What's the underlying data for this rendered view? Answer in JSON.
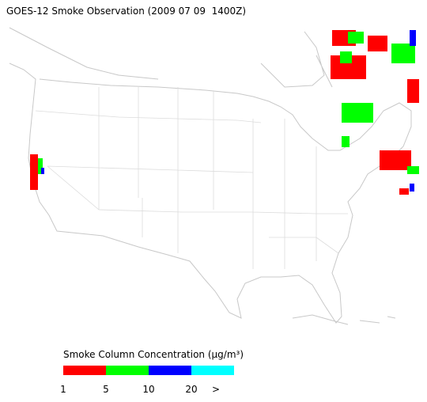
{
  "header": {
    "title": "GOES-12 Smoke Observation (2009 07 09  1400Z)"
  },
  "legend": {
    "title": "Smoke Column Concentration (µg/m³)",
    "bins": [
      {
        "color": "#ff0000"
      },
      {
        "color": "#00ff00"
      },
      {
        "color": "#0000ff"
      },
      {
        "color": "#00ffff"
      }
    ],
    "ticks": [
      "1",
      "5",
      "10",
      "20",
      ">"
    ]
  }
}
